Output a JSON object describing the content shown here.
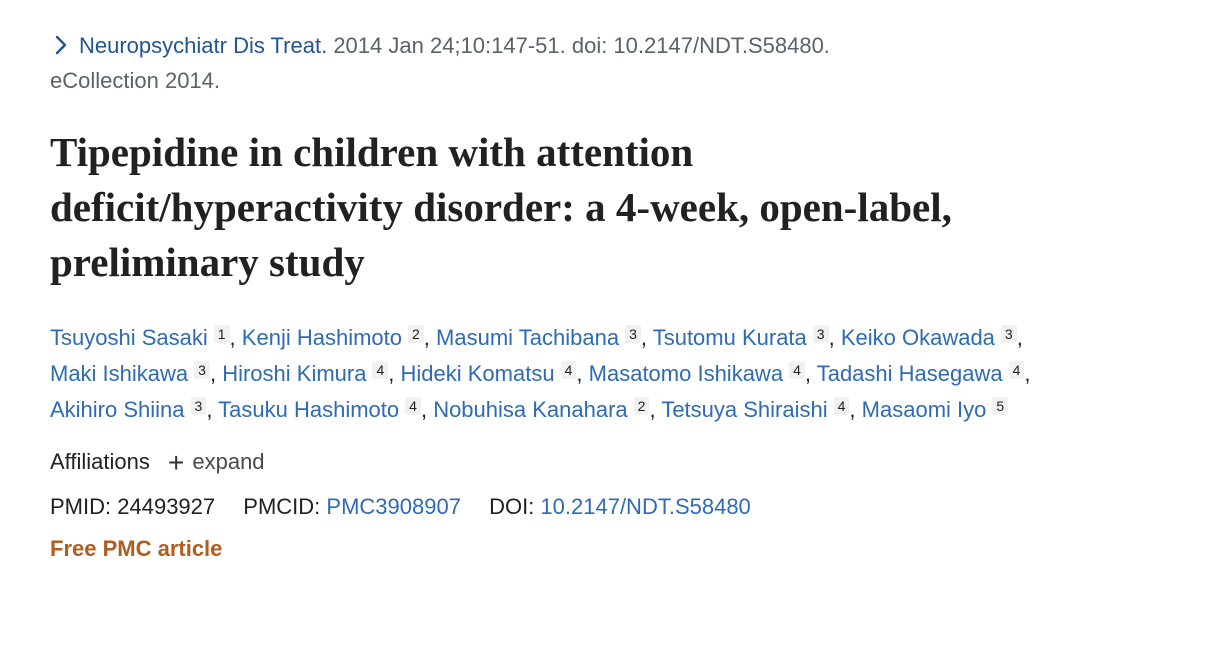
{
  "citation": {
    "journal": "Neuropsychiatr Dis Treat.",
    "details_line1": " 2014 Jan 24;10:147-51. doi: 10.2147/NDT.S58480.",
    "details_line2": "eCollection 2014."
  },
  "article": {
    "title": "Tipepidine in children with attention deficit/hyperactivity disorder: a 4-week, open-label, preliminary study"
  },
  "authors": [
    {
      "name": "Tsuyoshi Sasaki",
      "aff": "1"
    },
    {
      "name": "Kenji Hashimoto",
      "aff": "2"
    },
    {
      "name": "Masumi Tachibana",
      "aff": "3"
    },
    {
      "name": "Tsutomu Kurata",
      "aff": "3"
    },
    {
      "name": "Keiko Okawada",
      "aff": "3"
    },
    {
      "name": "Maki Ishikawa",
      "aff": "3"
    },
    {
      "name": "Hiroshi Kimura",
      "aff": "4"
    },
    {
      "name": "Hideki Komatsu",
      "aff": "4"
    },
    {
      "name": "Masatomo Ishikawa",
      "aff": "4"
    },
    {
      "name": "Tadashi Hasegawa",
      "aff": "4"
    },
    {
      "name": "Akihiro Shiina",
      "aff": "3"
    },
    {
      "name": "Tasuku Hashimoto",
      "aff": "4"
    },
    {
      "name": "Nobuhisa Kanahara",
      "aff": "2"
    },
    {
      "name": "Tetsuya Shiraishi",
      "aff": "4"
    },
    {
      "name": "Masaomi Iyo",
      "aff": "5"
    }
  ],
  "affiliations": {
    "label": "Affiliations",
    "expand_label": "expand"
  },
  "identifiers": {
    "pmid_label": "PMID:",
    "pmid_value": "24493927",
    "pmcid_label": "PMCID:",
    "pmcid_value": "PMC3908907",
    "doi_label": "DOI:",
    "doi_value": "10.2147/NDT.S58480"
  },
  "free_article": "Free PMC article",
  "icons": {
    "chevron": "chevron-right-icon",
    "plus": "plus-icon"
  }
}
